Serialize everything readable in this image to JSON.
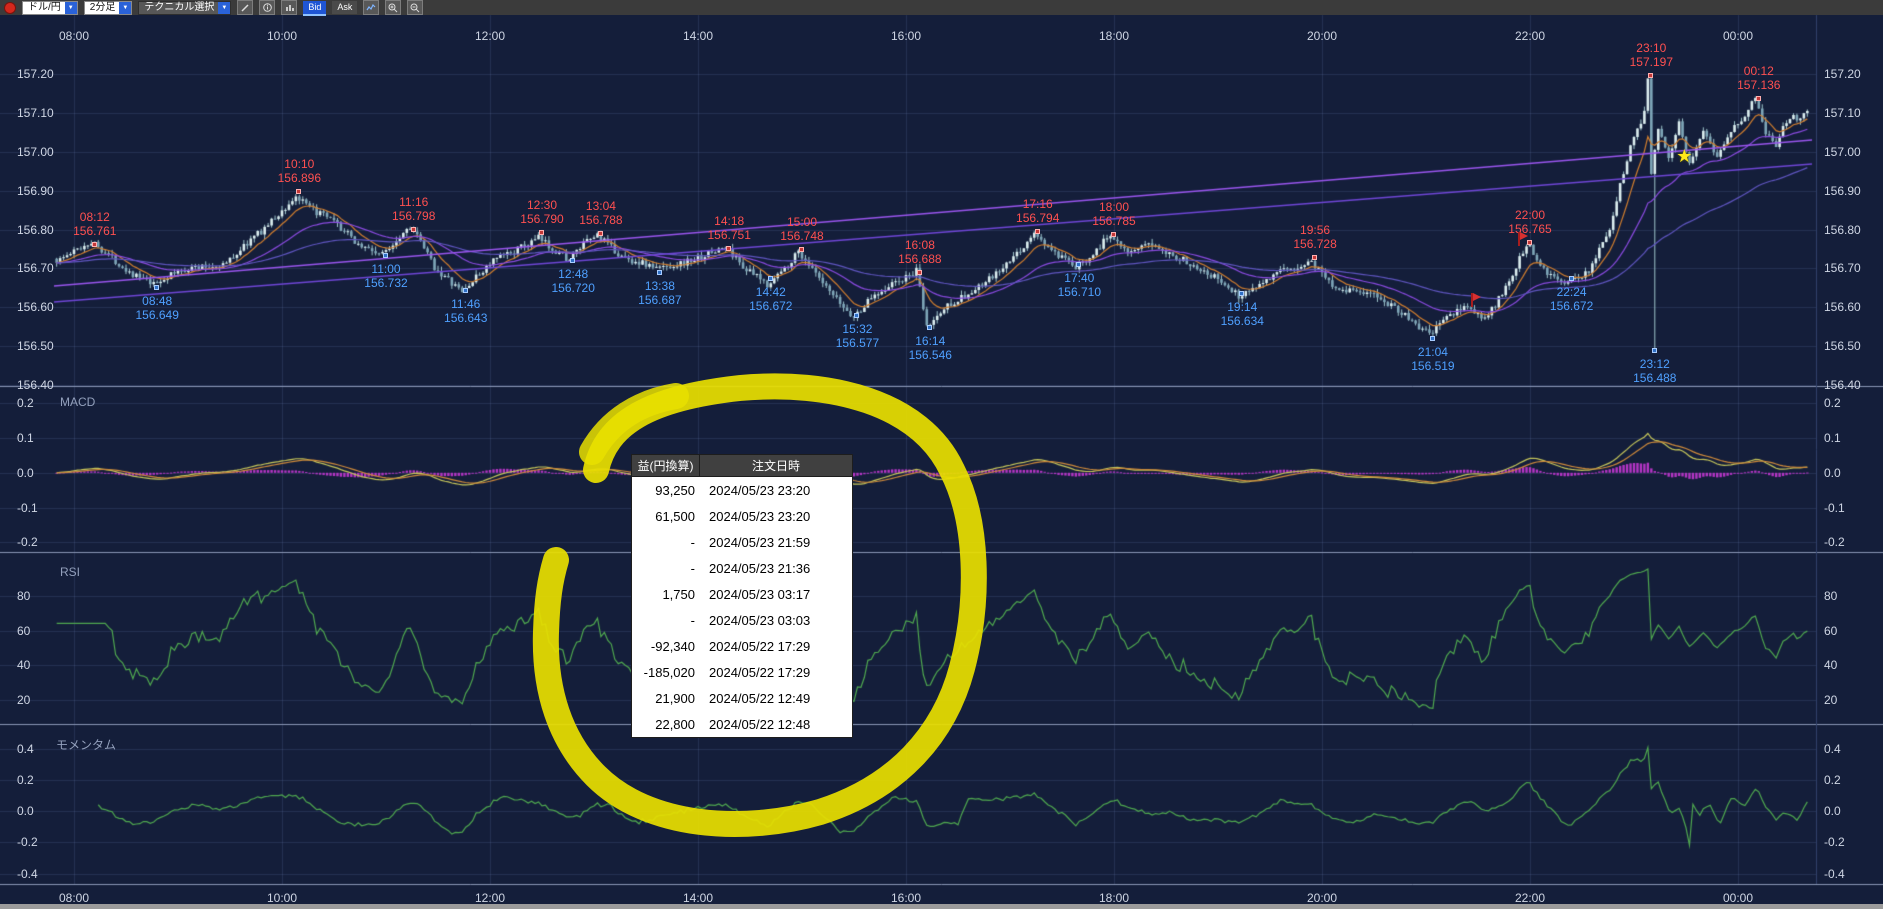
{
  "toolbar": {
    "pair_label": "ドル/円",
    "timeframe_label": "2分足",
    "technical_label": "テクニカル選択",
    "bid_label": "Bid",
    "ask_label": "Ask"
  },
  "chart_data": {
    "type": "candlestick",
    "symbol": "ドル/円",
    "interval": "2分足",
    "x_axis_labels": [
      "08:00",
      "10:00",
      "12:00",
      "14:00",
      "16:00",
      "18:00",
      "20:00",
      "22:00",
      "00:00"
    ],
    "price_axis": {
      "min": 156.4,
      "max": 157.2,
      "tick_labels": [
        "157.20",
        "157.10",
        "157.00",
        "156.90",
        "156.80",
        "156.70",
        "156.60",
        "156.50",
        "156.40"
      ]
    },
    "panels": [
      {
        "name": "MACD",
        "tick_labels": [
          "0.2",
          "0.1",
          "0.0",
          "-0.1",
          "-0.2"
        ],
        "range": [
          -0.2,
          0.2
        ]
      },
      {
        "name": "RSI",
        "tick_labels": [
          "80",
          "60",
          "40",
          "20"
        ],
        "range": [
          0,
          100
        ]
      },
      {
        "name": "モメンタム",
        "tick_labels": [
          "0.4",
          "0.2",
          "0.0",
          "-0.2",
          "-0.4"
        ],
        "range": [
          -0.4,
          0.4
        ]
      }
    ],
    "annotations": [
      {
        "time": "08:12",
        "price": "156.761",
        "type": "high"
      },
      {
        "time": "08:48",
        "price": "156.649",
        "type": "low"
      },
      {
        "time": "10:10",
        "price": "156.896",
        "type": "high"
      },
      {
        "time": "11:00",
        "price": "156.732",
        "type": "low"
      },
      {
        "time": "11:16",
        "price": "156.798",
        "type": "high"
      },
      {
        "time": "11:46",
        "price": "156.643",
        "type": "low"
      },
      {
        "time": "12:30",
        "price": "156.790",
        "type": "high"
      },
      {
        "time": "12:48",
        "price": "156.720",
        "type": "low"
      },
      {
        "time": "13:04",
        "price": "156.788",
        "type": "high"
      },
      {
        "time": "13:38",
        "price": "156.687",
        "type": "low"
      },
      {
        "time": "14:18",
        "price": "156.751",
        "type": "high"
      },
      {
        "time": "14:42",
        "price": "156.672",
        "type": "low"
      },
      {
        "time": "15:00",
        "price": "156.748",
        "type": "high"
      },
      {
        "time": "15:32",
        "price": "156.577",
        "type": "low"
      },
      {
        "time": "16:08",
        "price": "156.688",
        "type": "high"
      },
      {
        "time": "16:14",
        "price": "156.546",
        "type": "low"
      },
      {
        "time": "17:16",
        "price": "156.794",
        "type": "high"
      },
      {
        "time": "17:40",
        "price": "156.710",
        "type": "low"
      },
      {
        "time": "18:00",
        "price": "156.785",
        "type": "high"
      },
      {
        "time": "19:14",
        "price": "156.634",
        "type": "low"
      },
      {
        "time": "19:56",
        "price": "156.728",
        "type": "high"
      },
      {
        "time": "21:04",
        "price": "156.519",
        "type": "low"
      },
      {
        "time": "22:00",
        "price": "156.765",
        "type": "high"
      },
      {
        "time": "22:24",
        "price": "156.672",
        "type": "low"
      },
      {
        "time": "23:10",
        "price": "157.197",
        "type": "high"
      },
      {
        "time": "23:12",
        "price": "156.488",
        "type": "low"
      },
      {
        "time": "00:12",
        "price": "157.136",
        "type": "high"
      }
    ],
    "markers": [
      {
        "type": "flag",
        "time": "21:26",
        "price": "156.60"
      },
      {
        "type": "flag",
        "time": "21:53",
        "price": "156.758"
      },
      {
        "type": "star",
        "time": "23:29",
        "price": "156.99"
      }
    ],
    "price_anchors": [
      [
        -10,
        156.725
      ],
      [
        0,
        156.74
      ],
      [
        12,
        156.761
      ],
      [
        30,
        156.7
      ],
      [
        48,
        156.649
      ],
      [
        70,
        156.7
      ],
      [
        90,
        156.72
      ],
      [
        110,
        156.8
      ],
      [
        130,
        156.896
      ],
      [
        138,
        156.86
      ],
      [
        150,
        156.82
      ],
      [
        166,
        156.76
      ],
      [
        180,
        156.732
      ],
      [
        196,
        156.798
      ],
      [
        210,
        156.7
      ],
      [
        226,
        156.643
      ],
      [
        244,
        156.72
      ],
      [
        258,
        156.76
      ],
      [
        270,
        156.79
      ],
      [
        280,
        156.75
      ],
      [
        288,
        156.72
      ],
      [
        296,
        156.76
      ],
      [
        304,
        156.788
      ],
      [
        320,
        156.72
      ],
      [
        338,
        156.687
      ],
      [
        352,
        156.71
      ],
      [
        364,
        156.73
      ],
      [
        378,
        156.751
      ],
      [
        390,
        156.7
      ],
      [
        402,
        156.672
      ],
      [
        412,
        156.71
      ],
      [
        420,
        156.748
      ],
      [
        434,
        156.66
      ],
      [
        452,
        156.577
      ],
      [
        462,
        156.62
      ],
      [
        470,
        156.64
      ],
      [
        480,
        156.66
      ],
      [
        488,
        156.688
      ],
      [
        494,
        156.546
      ],
      [
        506,
        156.6
      ],
      [
        520,
        156.63
      ],
      [
        536,
        156.7
      ],
      [
        556,
        156.794
      ],
      [
        568,
        156.74
      ],
      [
        580,
        156.71
      ],
      [
        600,
        156.785
      ],
      [
        612,
        156.73
      ],
      [
        626,
        156.76
      ],
      [
        640,
        156.72
      ],
      [
        656,
        156.68
      ],
      [
        674,
        156.634
      ],
      [
        690,
        156.68
      ],
      [
        704,
        156.7
      ],
      [
        716,
        156.728
      ],
      [
        730,
        156.66
      ],
      [
        748,
        156.63
      ],
      [
        764,
        156.6
      ],
      [
        784,
        156.519
      ],
      [
        794,
        156.56
      ],
      [
        806,
        156.6
      ],
      [
        816,
        156.57
      ],
      [
        828,
        156.65
      ],
      [
        840,
        156.765
      ],
      [
        852,
        156.7
      ],
      [
        864,
        156.672
      ],
      [
        876,
        156.7
      ],
      [
        888,
        156.8
      ],
      [
        900,
        157.02
      ],
      [
        908,
        157.1
      ],
      [
        910,
        157.197
      ],
      [
        912,
        156.95
      ],
      [
        916,
        157.06
      ],
      [
        922,
        156.98
      ],
      [
        928,
        157.06
      ],
      [
        934,
        156.96
      ],
      [
        942,
        157.05
      ],
      [
        950,
        156.99
      ],
      [
        958,
        157.06
      ],
      [
        966,
        157.09
      ],
      [
        972,
        157.136
      ],
      [
        978,
        157.05
      ],
      [
        984,
        157.02
      ],
      [
        990,
        157.09
      ],
      [
        1000,
        157.11
      ]
    ],
    "spikes": [
      {
        "t": 910,
        "high": 157.197
      },
      {
        "t": 912,
        "low": 156.488
      }
    ]
  },
  "overlay_table": {
    "columns": [
      "益(円換算)",
      "注文日時"
    ],
    "rows": [
      [
        "93,250",
        "2024/05/23 23:20"
      ],
      [
        "61,500",
        "2024/05/23 23:20"
      ],
      [
        "-",
        "2024/05/23 21:59"
      ],
      [
        "-",
        "2024/05/23 21:36"
      ],
      [
        "1,750",
        "2024/05/23 03:17"
      ],
      [
        "-",
        "2024/05/23 03:03"
      ],
      [
        "-92,340",
        "2024/05/22 17:29"
      ],
      [
        "-185,020",
        "2024/05/22 17:29"
      ],
      [
        "21,900",
        "2024/05/22 12:49"
      ],
      [
        "22,800",
        "2024/05/22 12:48"
      ]
    ]
  }
}
